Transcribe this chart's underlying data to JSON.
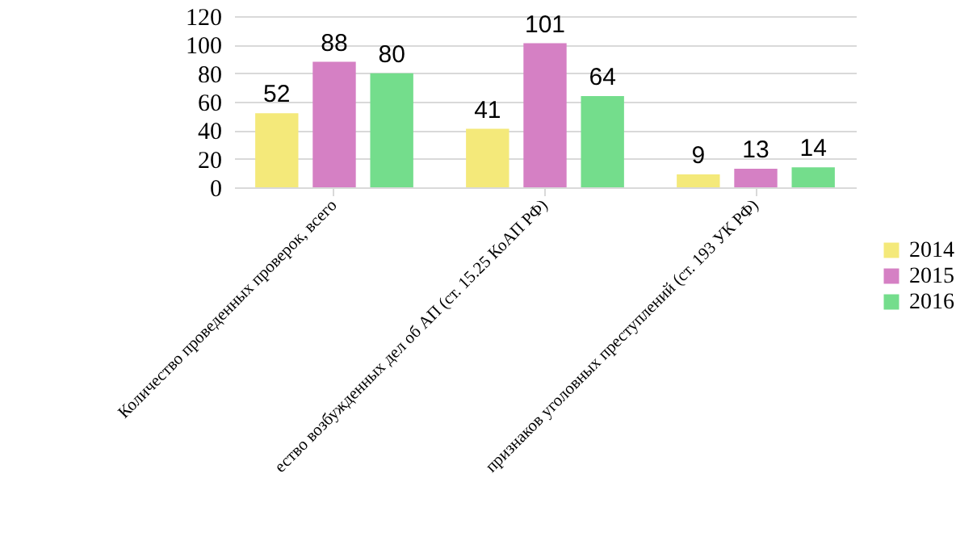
{
  "chart_data": {
    "type": "bar",
    "categories": [
      "Количество проведенных проверок, всего",
      "ество возбужденных  дел об АП (ст. 15.25 КоАП РФ)",
      "признаков уголовных преступлений (ст. 193 УК РФ)"
    ],
    "series": [
      {
        "name": "2014",
        "color": "#f4e97a",
        "values": [
          52,
          41,
          9
        ]
      },
      {
        "name": "2015",
        "color": "#d580c4",
        "values": [
          88,
          101,
          13
        ]
      },
      {
        "name": "2016",
        "color": "#74dd8c",
        "values": [
          80,
          64,
          14
        ]
      }
    ],
    "ylim": [
      0,
      120
    ],
    "yticks": [
      0,
      20,
      40,
      60,
      80,
      100,
      120
    ],
    "grid": "y",
    "legend": "right",
    "data_labels": true
  }
}
